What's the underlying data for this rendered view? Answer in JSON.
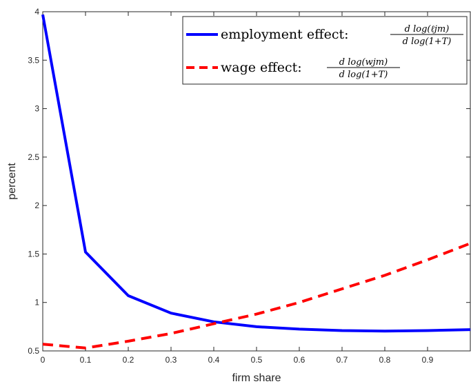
{
  "chart_data": {
    "type": "line",
    "xlabel": "firm share",
    "ylabel": "percent",
    "xlim": [
      0,
      1
    ],
    "ylim": [
      0.5,
      4
    ],
    "xticks": [
      0,
      0.1,
      0.2,
      0.3,
      0.4,
      0.5,
      0.6,
      0.7,
      0.8,
      0.9
    ],
    "xtick_labels": [
      "0",
      "0.1",
      "0.2",
      "0.3",
      "0.4",
      "0.5",
      "0.6",
      "0.7",
      "0.8",
      "0.9"
    ],
    "yticks": [
      0.5,
      1,
      1.5,
      2,
      2.5,
      3,
      3.5,
      4
    ],
    "ytick_labels": [
      "0.5",
      "1",
      "1.5",
      "2",
      "2.5",
      "3",
      "3.5",
      "4"
    ],
    "grid": false,
    "legend_position": "top-right",
    "series": [
      {
        "name": "employment effect:",
        "formula_numerator": "d log(ℓjm)",
        "formula_denominator": "d log(1+T)",
        "color": "#0000ff",
        "style": "solid",
        "x": [
          0,
          0.1,
          0.2,
          0.3,
          0.4,
          0.5,
          0.6,
          0.7,
          0.8,
          0.9,
          1.0
        ],
        "values": [
          3.97,
          1.52,
          1.07,
          0.89,
          0.8,
          0.75,
          0.725,
          0.71,
          0.705,
          0.71,
          0.72
        ]
      },
      {
        "name": "wage effect:",
        "formula_numerator": "d log(wjm)",
        "formula_denominator": "d log(1+T)",
        "color": "#ff0000",
        "style": "dashed",
        "x": [
          0,
          0.1,
          0.2,
          0.3,
          0.4,
          0.5,
          0.6,
          0.7,
          0.8,
          0.9,
          1.0
        ],
        "values": [
          0.57,
          0.53,
          0.6,
          0.68,
          0.78,
          0.88,
          1.0,
          1.14,
          1.28,
          1.44,
          1.61
        ]
      }
    ]
  }
}
